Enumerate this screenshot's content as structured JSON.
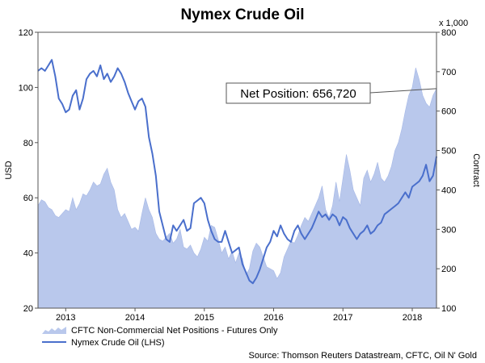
{
  "chart_data": {
    "type": "area",
    "title": "Nymex Crude Oil",
    "left_axis": {
      "label": "USD",
      "range": [
        20,
        120
      ],
      "ticks": [
        "120",
        "100",
        "80",
        "60",
        "40",
        "20"
      ]
    },
    "right_axis": {
      "label": "Contract",
      "unit": "x 1,000",
      "range": [
        100,
        800
      ],
      "ticks": [
        "800",
        "700",
        "600",
        "500",
        "400",
        "300",
        "200",
        "100"
      ]
    },
    "x_axis": {
      "range": [
        2012.6,
        2018.35
      ],
      "tick_labels": [
        "2013",
        "2014",
        "2015",
        "2016",
        "2017",
        "2018"
      ],
      "tick_positions": [
        2013,
        2014,
        2015,
        2016,
        2017,
        2018
      ]
    },
    "grid": false,
    "legend_position": "bottom-left",
    "annotation": {
      "text": "Net Position: 656,720",
      "x": 2018.35,
      "y": 657
    },
    "source": "Source: Thomson Reuters Datastream, CFTC, Oil N' Gold",
    "series": [
      {
        "name": "CFTC Non-Commercial Net Positions - Futures Only",
        "axis": "right",
        "color": "#b9c8ec",
        "x": [
          2012.6,
          2012.65,
          2012.7,
          2012.75,
          2012.8,
          2012.85,
          2012.9,
          2012.95,
          2013.0,
          2013.05,
          2013.1,
          2013.15,
          2013.2,
          2013.25,
          2013.3,
          2013.35,
          2013.4,
          2013.45,
          2013.5,
          2013.55,
          2013.6,
          2013.65,
          2013.7,
          2013.75,
          2013.8,
          2013.85,
          2013.9,
          2013.95,
          2014.0,
          2014.05,
          2014.1,
          2014.15,
          2014.2,
          2014.25,
          2014.3,
          2014.35,
          2014.4,
          2014.45,
          2014.5,
          2014.55,
          2014.6,
          2014.65,
          2014.7,
          2014.75,
          2014.8,
          2014.85,
          2014.9,
          2014.95,
          2015.0,
          2015.05,
          2015.1,
          2015.15,
          2015.2,
          2015.25,
          2015.3,
          2015.35,
          2015.4,
          2015.45,
          2015.5,
          2015.55,
          2015.6,
          2015.65,
          2015.7,
          2015.75,
          2015.8,
          2015.85,
          2015.9,
          2015.95,
          2016.0,
          2016.05,
          2016.1,
          2016.15,
          2016.2,
          2016.25,
          2016.3,
          2016.35,
          2016.4,
          2016.45,
          2016.5,
          2016.55,
          2016.6,
          2016.65,
          2016.7,
          2016.75,
          2016.8,
          2016.85,
          2016.9,
          2016.95,
          2017.0,
          2017.05,
          2017.1,
          2017.15,
          2017.2,
          2017.25,
          2017.3,
          2017.35,
          2017.4,
          2017.45,
          2017.5,
          2017.55,
          2017.6,
          2017.65,
          2017.7,
          2017.75,
          2017.8,
          2017.85,
          2017.9,
          2017.95,
          2018.0,
          2018.05,
          2018.1,
          2018.15,
          2018.2,
          2018.25,
          2018.3,
          2018.35
        ],
        "values": [
          360,
          375,
          370,
          355,
          350,
          335,
          330,
          340,
          350,
          345,
          380,
          350,
          365,
          390,
          385,
          400,
          420,
          410,
          415,
          440,
          455,
          420,
          400,
          350,
          330,
          340,
          320,
          300,
          305,
          295,
          340,
          380,
          350,
          330,
          290,
          275,
          270,
          280,
          290,
          265,
          275,
          300,
          255,
          250,
          260,
          240,
          230,
          250,
          280,
          270,
          310,
          305,
          275,
          240,
          255,
          225,
          245,
          215,
          240,
          225,
          185,
          200,
          245,
          265,
          255,
          230,
          205,
          200,
          195,
          175,
          190,
          230,
          250,
          270,
          265,
          285,
          310,
          330,
          320,
          340,
          360,
          380,
          410,
          350,
          330,
          360,
          420,
          370,
          430,
          490,
          450,
          400,
          380,
          360,
          430,
          450,
          420,
          440,
          470,
          430,
          420,
          435,
          460,
          500,
          520,
          555,
          600,
          640,
          660,
          710,
          680,
          640,
          620,
          610,
          640,
          657
        ]
      },
      {
        "name": "Nymex Crude Oil (LHS)",
        "axis": "left",
        "color": "#4a6fcc",
        "x": [
          2012.6,
          2012.65,
          2012.7,
          2012.75,
          2012.8,
          2012.85,
          2012.9,
          2012.95,
          2013.0,
          2013.05,
          2013.1,
          2013.15,
          2013.2,
          2013.25,
          2013.3,
          2013.35,
          2013.4,
          2013.45,
          2013.5,
          2013.55,
          2013.6,
          2013.65,
          2013.7,
          2013.75,
          2013.8,
          2013.85,
          2013.9,
          2013.95,
          2014.0,
          2014.05,
          2014.1,
          2014.15,
          2014.2,
          2014.25,
          2014.3,
          2014.35,
          2014.4,
          2014.45,
          2014.5,
          2014.55,
          2014.6,
          2014.65,
          2014.7,
          2014.75,
          2014.8,
          2014.85,
          2014.9,
          2014.95,
          2015.0,
          2015.05,
          2015.1,
          2015.15,
          2015.2,
          2015.25,
          2015.3,
          2015.35,
          2015.4,
          2015.45,
          2015.5,
          2015.55,
          2015.6,
          2015.65,
          2015.7,
          2015.75,
          2015.8,
          2015.85,
          2015.9,
          2015.95,
          2016.0,
          2016.05,
          2016.1,
          2016.15,
          2016.2,
          2016.25,
          2016.3,
          2016.35,
          2016.4,
          2016.45,
          2016.5,
          2016.55,
          2016.6,
          2016.65,
          2016.7,
          2016.75,
          2016.8,
          2016.85,
          2016.9,
          2016.95,
          2017.0,
          2017.05,
          2017.1,
          2017.15,
          2017.2,
          2017.25,
          2017.3,
          2017.35,
          2017.4,
          2017.45,
          2017.5,
          2017.55,
          2017.6,
          2017.65,
          2017.7,
          2017.75,
          2017.8,
          2017.85,
          2017.9,
          2017.95,
          2018.0,
          2018.05,
          2018.1,
          2018.15,
          2018.2,
          2018.25,
          2018.3,
          2018.35
        ],
        "values": [
          106,
          107,
          106,
          108,
          110,
          104,
          96,
          94,
          91,
          92,
          97,
          99,
          92,
          96,
          103,
          105,
          106,
          104,
          108,
          103,
          105,
          102,
          104,
          107,
          105,
          102,
          98,
          95,
          92,
          95,
          96,
          93,
          82,
          76,
          68,
          55,
          50,
          45,
          44,
          50,
          48,
          50,
          52,
          48,
          49,
          58,
          59,
          60,
          58,
          52,
          48,
          45,
          44,
          44,
          48,
          44,
          40,
          41,
          42,
          36,
          33,
          30,
          29,
          31,
          34,
          38,
          42,
          44,
          48,
          46,
          50,
          47,
          45,
          44,
          48,
          50,
          47,
          45,
          47,
          49,
          52,
          55,
          53,
          54,
          52,
          54,
          53,
          50,
          53,
          52,
          49,
          47,
          45,
          47,
          48,
          50,
          47,
          48,
          50,
          51,
          54,
          55,
          56,
          57,
          58,
          60,
          62,
          60,
          64,
          65,
          66,
          68,
          72,
          66,
          68,
          75
        ]
      }
    ]
  }
}
